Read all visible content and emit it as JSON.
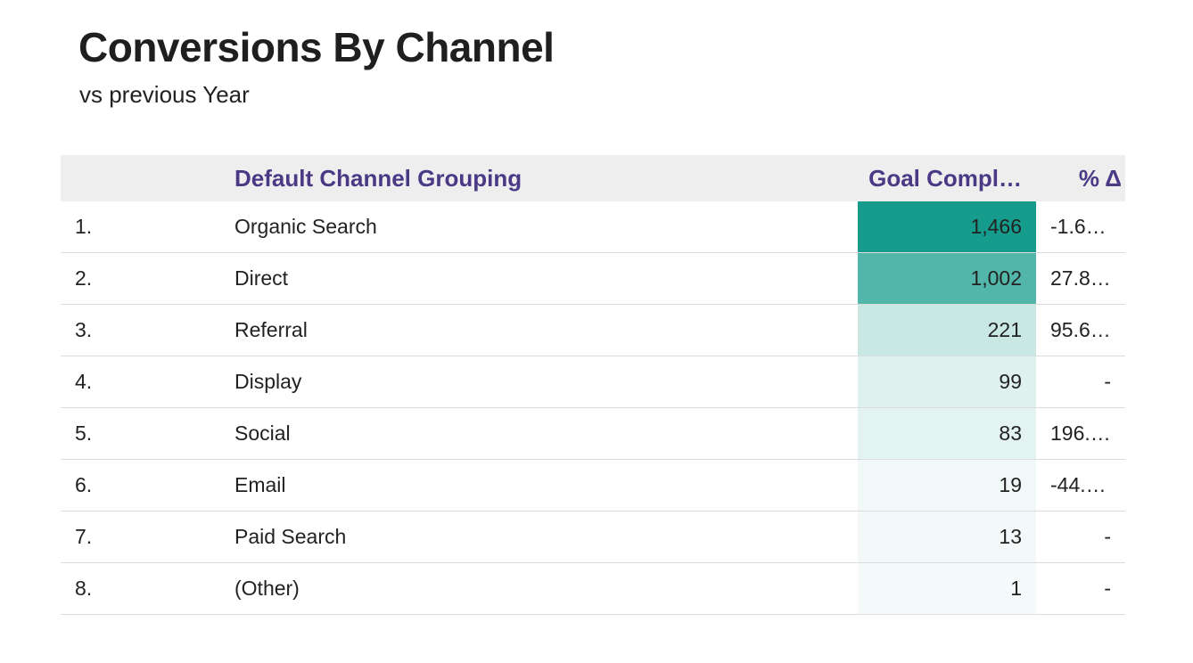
{
  "header": {
    "title": "Conversions By Channel",
    "subtitle": "vs previous Year"
  },
  "table": {
    "columns": [
      "",
      "Default Channel Grouping",
      "Goal Compl…",
      "% Δ"
    ],
    "heat_color": "#159c8c",
    "heat_base": "#ffffff",
    "rows": [
      {
        "rank": "1.",
        "channel": "Organic Search",
        "goal": "1,466",
        "goal_value": 1466,
        "delta": "-1.6…"
      },
      {
        "rank": "2.",
        "channel": "Direct",
        "goal": "1,002",
        "goal_value": 1002,
        "delta": "27.8…"
      },
      {
        "rank": "3.",
        "channel": "Referral",
        "goal": "221",
        "goal_value": 221,
        "delta": "95.6…"
      },
      {
        "rank": "4.",
        "channel": "Display",
        "goal": "99",
        "goal_value": 99,
        "delta": "-"
      },
      {
        "rank": "5.",
        "channel": "Social",
        "goal": "83",
        "goal_value": 83,
        "delta": "196.…"
      },
      {
        "rank": "6.",
        "channel": "Email",
        "goal": "19",
        "goal_value": 19,
        "delta": "-44.…"
      },
      {
        "rank": "7.",
        "channel": "Paid Search",
        "goal": "13",
        "goal_value": 13,
        "delta": "-"
      },
      {
        "rank": "8.",
        "channel": "(Other)",
        "goal": "1",
        "goal_value": 1,
        "delta": "-"
      }
    ]
  },
  "chart_data": {
    "type": "table",
    "title": "Conversions By Channel",
    "subtitle": "vs previous Year",
    "columns": [
      "Default Channel Grouping",
      "Goal Compl…",
      "% Δ"
    ],
    "categories": [
      "Organic Search",
      "Direct",
      "Referral",
      "Display",
      "Social",
      "Email",
      "Paid Search",
      "(Other)"
    ],
    "values": [
      1466,
      1002,
      221,
      99,
      83,
      19,
      13,
      1
    ],
    "delta_labels": [
      "-1.6…",
      "27.8…",
      "95.6…",
      "-",
      "196.…",
      "-44.…",
      "-",
      "-"
    ]
  }
}
